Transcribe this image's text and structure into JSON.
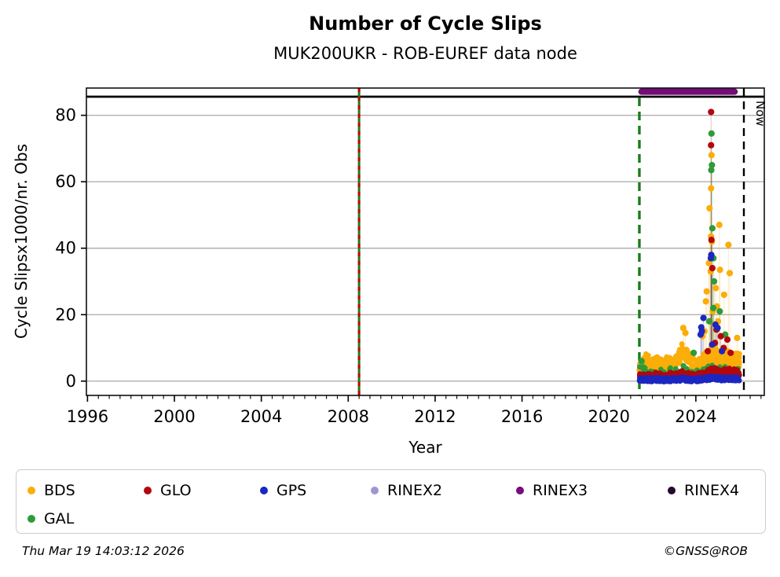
{
  "chart_data": {
    "type": "scatter",
    "title": "Number of Cycle Slips",
    "subtitle": "MUK200UKR - ROB-EUREF data node",
    "xlabel": "Year",
    "ylabel": "Cycle Slipsx1000/nr. Obs",
    "xlim": [
      1995.95,
      2027.15
    ],
    "ylim": [
      -4.3,
      88.2
    ],
    "xticks": [
      1996,
      2000,
      2004,
      2008,
      2012,
      2016,
      2020,
      2024
    ],
    "x_minor_step": 0.5,
    "yticks": [
      0,
      20,
      40,
      60,
      80
    ],
    "grid": "horizontal",
    "grid_color": "#b0b0b0",
    "annotations": {
      "vline_event": {
        "year": 2008.5,
        "line_color": "#1a7d1a",
        "dash_color": "#cc0000"
      },
      "vline_data_start": {
        "year": 2021.4,
        "color": "#1a7d1a",
        "dashed": true
      },
      "vline_now": {
        "year": 2026.21,
        "label": "Now",
        "color": "#000000",
        "dashed": true
      },
      "rinex3_bar": {
        "start": 2021.35,
        "end": 2025.93,
        "value": 87.1,
        "color": "#740b77"
      },
      "top_separator_value": 85.6
    },
    "series": [
      {
        "name": "BDS",
        "color": "#fbad08",
        "count": 16,
        "spread": 2.2,
        "band": [
          [
            2021.45,
            3.5
          ],
          [
            2021.6,
            5.5
          ],
          [
            2021.75,
            6
          ],
          [
            2021.9,
            4.5
          ],
          [
            2022.05,
            4.5
          ],
          [
            2022.2,
            5.5
          ],
          [
            2022.35,
            4.5
          ],
          [
            2022.5,
            3.8
          ],
          [
            2022.65,
            5.2
          ],
          [
            2022.8,
            5
          ],
          [
            2022.95,
            4.4
          ],
          [
            2023.1,
            5.8
          ],
          [
            2023.25,
            7.5
          ],
          [
            2023.4,
            9
          ],
          [
            2023.55,
            8.2
          ],
          [
            2023.7,
            6.2
          ],
          [
            2023.85,
            5.2
          ],
          [
            2024.0,
            4.4
          ],
          [
            2024.15,
            5.2
          ],
          [
            2024.3,
            6.2
          ],
          [
            2024.45,
            7
          ],
          [
            2024.6,
            7.8
          ],
          [
            2024.75,
            8.6
          ],
          [
            2024.9,
            7.8
          ],
          [
            2025.05,
            7.2
          ],
          [
            2025.2,
            6.4
          ],
          [
            2025.35,
            6.6
          ],
          [
            2025.5,
            7
          ],
          [
            2025.65,
            6.2
          ],
          [
            2025.8,
            6.8
          ],
          [
            2025.95,
            6.2
          ]
        ],
        "outliers": [
          [
            2024.72,
            68
          ],
          [
            2024.7,
            58
          ],
          [
            2024.63,
            52
          ],
          [
            2024.7,
            43.5
          ],
          [
            2024.74,
            42
          ],
          [
            2024.6,
            35.5
          ],
          [
            2024.68,
            33
          ],
          [
            2024.5,
            27
          ],
          [
            2024.46,
            24
          ],
          [
            2024.78,
            21
          ],
          [
            2024.86,
            17
          ],
          [
            2024.92,
            28
          ],
          [
            2024.97,
            22.5
          ],
          [
            2025.02,
            18
          ],
          [
            2025.08,
            47
          ],
          [
            2025.11,
            33.5
          ],
          [
            2025.3,
            26
          ],
          [
            2025.5,
            41
          ],
          [
            2025.56,
            32.5
          ],
          [
            2023.42,
            16
          ],
          [
            2023.52,
            14.5
          ],
          [
            2025.9,
            13
          ],
          [
            2024.4,
            15
          ],
          [
            2024.3,
            13.5
          ]
        ]
      },
      {
        "name": "GAL",
        "color": "#2e9b38",
        "count": 3,
        "spread": 1.6,
        "band": [
          [
            2021.45,
            3.0
          ],
          [
            2021.6,
            3.5
          ],
          [
            2021.75,
            2.5
          ],
          [
            2021.9,
            2
          ],
          [
            2022.05,
            2
          ],
          [
            2022.2,
            2.5
          ],
          [
            2022.35,
            2
          ],
          [
            2022.5,
            1.8
          ],
          [
            2022.65,
            2.2
          ],
          [
            2022.8,
            2.5
          ],
          [
            2022.95,
            2
          ],
          [
            2023.1,
            2.2
          ],
          [
            2023.25,
            2.8
          ],
          [
            2023.4,
            3
          ],
          [
            2023.55,
            2.5
          ],
          [
            2023.7,
            2.2
          ],
          [
            2023.85,
            2
          ],
          [
            2024.0,
            1.8
          ],
          [
            2024.15,
            2.2
          ],
          [
            2024.3,
            2.5
          ],
          [
            2024.45,
            2.8
          ],
          [
            2024.6,
            3.2
          ],
          [
            2024.75,
            3.5
          ],
          [
            2024.9,
            3.2
          ],
          [
            2025.05,
            3
          ],
          [
            2025.2,
            2.8
          ],
          [
            2025.35,
            2.8
          ],
          [
            2025.5,
            3
          ],
          [
            2025.65,
            2.6
          ],
          [
            2025.8,
            2.8
          ],
          [
            2025.95,
            2.4
          ]
        ],
        "outliers": [
          [
            2024.72,
            74.5
          ],
          [
            2024.74,
            65
          ],
          [
            2024.71,
            63.5
          ],
          [
            2024.76,
            46
          ],
          [
            2024.81,
            37
          ],
          [
            2024.84,
            30
          ],
          [
            2024.8,
            22
          ],
          [
            2025.1,
            21
          ],
          [
            2024.62,
            18
          ],
          [
            2025.35,
            14
          ],
          [
            2023.9,
            8.5
          ],
          [
            2021.5,
            6
          ]
        ]
      },
      {
        "name": "GLO",
        "color": "#b2070f",
        "count": 10,
        "spread": 1.2,
        "band": [
          [
            2021.45,
            1.2
          ],
          [
            2021.6,
            1.4
          ],
          [
            2021.75,
            1.2
          ],
          [
            2021.9,
            1.0
          ],
          [
            2022.05,
            1.2
          ],
          [
            2022.2,
            1.5
          ],
          [
            2022.35,
            1.2
          ],
          [
            2022.5,
            1.0
          ],
          [
            2022.65,
            1.3
          ],
          [
            2022.8,
            1.5
          ],
          [
            2022.95,
            1.2
          ],
          [
            2023.1,
            1.4
          ],
          [
            2023.25,
            1.8
          ],
          [
            2023.4,
            2.0
          ],
          [
            2023.55,
            1.6
          ],
          [
            2023.7,
            1.4
          ],
          [
            2023.85,
            1.2
          ],
          [
            2024.0,
            1.0
          ],
          [
            2024.15,
            1.4
          ],
          [
            2024.3,
            1.6
          ],
          [
            2024.45,
            1.8
          ],
          [
            2024.6,
            2.6
          ],
          [
            2024.75,
            3.2
          ],
          [
            2024.9,
            3.0
          ],
          [
            2025.05,
            2.8
          ],
          [
            2025.2,
            2.4
          ],
          [
            2025.35,
            2.6
          ],
          [
            2025.5,
            2.8
          ],
          [
            2025.65,
            2.4
          ],
          [
            2025.8,
            2.6
          ],
          [
            2025.95,
            2.2
          ]
        ],
        "outliers": [
          [
            2024.7,
            81
          ],
          [
            2024.7,
            71
          ],
          [
            2024.72,
            42.5
          ],
          [
            2024.76,
            34
          ],
          [
            2024.95,
            15.5
          ],
          [
            2025.15,
            13.5
          ],
          [
            2024.88,
            11.5
          ],
          [
            2025.45,
            12.5
          ],
          [
            2025.28,
            10
          ],
          [
            2024.55,
            9
          ],
          [
            2025.6,
            8.5
          ]
        ]
      },
      {
        "name": "GPS",
        "color": "#1c27bf",
        "count": 12,
        "spread": 0.6,
        "band": [
          [
            2021.45,
            0.4
          ],
          [
            2021.6,
            0.4
          ],
          [
            2021.75,
            0.5
          ],
          [
            2021.9,
            0.4
          ],
          [
            2022.05,
            0.4
          ],
          [
            2022.2,
            0.5
          ],
          [
            2022.35,
            0.4
          ],
          [
            2022.5,
            0.4
          ],
          [
            2022.65,
            0.5
          ],
          [
            2022.8,
            0.4
          ],
          [
            2022.95,
            0.4
          ],
          [
            2023.1,
            0.5
          ],
          [
            2023.25,
            0.6
          ],
          [
            2023.4,
            0.6
          ],
          [
            2023.55,
            0.5
          ],
          [
            2023.7,
            0.4
          ],
          [
            2023.85,
            0.4
          ],
          [
            2024.0,
            0.4
          ],
          [
            2024.15,
            0.5
          ],
          [
            2024.3,
            0.6
          ],
          [
            2024.45,
            0.7
          ],
          [
            2024.6,
            0.8
          ],
          [
            2024.75,
            1.0
          ],
          [
            2024.9,
            0.9
          ],
          [
            2025.05,
            0.8
          ],
          [
            2025.2,
            0.7
          ],
          [
            2025.35,
            0.7
          ],
          [
            2025.5,
            0.8
          ],
          [
            2025.65,
            0.7
          ],
          [
            2025.8,
            0.7
          ],
          [
            2025.95,
            0.6
          ]
        ],
        "outliers": [
          [
            2024.71,
            38
          ],
          [
            2024.69,
            37
          ],
          [
            2024.25,
            16.2
          ],
          [
            2024.28,
            15
          ],
          [
            2024.22,
            14
          ],
          [
            2024.35,
            19
          ],
          [
            2024.9,
            17
          ],
          [
            2025.0,
            16
          ],
          [
            2024.75,
            11
          ],
          [
            2025.2,
            9
          ]
        ]
      }
    ],
    "legend": {
      "items": [
        {
          "label": "BDS",
          "color": "#fbad08"
        },
        {
          "label": "GLO",
          "color": "#b2070f"
        },
        {
          "label": "GPS",
          "color": "#1c27bf"
        },
        {
          "label": "RINEX2",
          "color": "#9d97d3"
        },
        {
          "label": "RINEX3",
          "color": "#780c80"
        },
        {
          "label": "RINEX4",
          "color": "#260a2e"
        },
        {
          "label": "GAL",
          "color": "#2e9b38"
        }
      ]
    }
  },
  "footer": {
    "timestamp": "Thu Mar 19 14:03:12 2026",
    "copyright": "©GNSS@ROB"
  }
}
